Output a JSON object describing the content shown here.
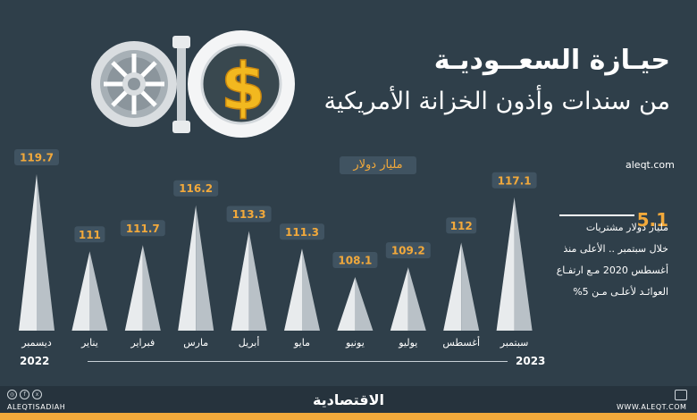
{
  "header": {
    "title_line1": "حيـازة السعــوديـة",
    "title_line2": "من سندات وأذون الخزانة الأمريكية"
  },
  "site": "aleqt.com",
  "unit_label": "مليار دولار",
  "note": {
    "number": "5.1",
    "lines": [
      "مليار دولار مشتريات",
      "خلال سبتمبر  ..  الأعلى منذ",
      "أغسطس 2020 مـع ارتفـاع",
      "العوائـد لأعلـى مـن 5%"
    ]
  },
  "years": {
    "start": "2022",
    "end": "2023"
  },
  "chart_data": {
    "type": "bar",
    "categories": [
      "ديسمبر",
      "يناير",
      "فبراير",
      "مارس",
      "أبريل",
      "مايو",
      "يونيو",
      "يوليو",
      "أغسطس",
      "سبتمبر"
    ],
    "values": [
      119.7,
      111,
      111.7,
      116.2,
      113.3,
      111.3,
      108.1,
      109.2,
      112,
      117.1
    ],
    "value_labels": [
      "119.7",
      "111",
      "111.7",
      "116.2",
      "113.3",
      "111.3",
      "108.1",
      "109.2",
      "112",
      "117.1"
    ],
    "ylabel": "مليار دولار",
    "ylim": [
      100,
      120
    ],
    "grid": false,
    "colors": {
      "spike": "#e8ebed",
      "spike_shade": "#b9c1c7",
      "label_bg": "#405361",
      "label_text": "#f2a93b",
      "axis_text": "#ffffff"
    }
  },
  "footer": {
    "social_icons": [
      "instagram-icon",
      "facebook-icon",
      "x-icon"
    ],
    "handle": "ALEQTISADIAH",
    "brand": "الاقتصادية",
    "url": "WWW.ALEQT.COM"
  }
}
